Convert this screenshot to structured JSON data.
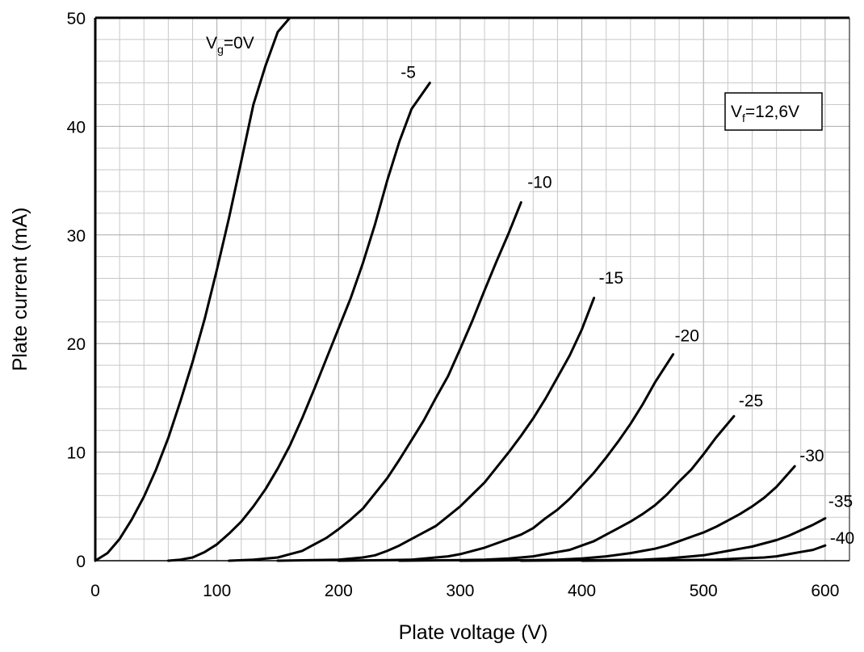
{
  "chart_data": {
    "type": "line",
    "xlabel": "Plate voltage (V)",
    "ylabel": "Plate current (mA)",
    "xlim": [
      0,
      620
    ],
    "ylim": [
      0,
      50
    ],
    "x_ticks": [
      0,
      100,
      200,
      300,
      400,
      500,
      600
    ],
    "y_ticks": [
      0,
      10,
      20,
      30,
      40,
      50
    ],
    "grid": true,
    "annotation": {
      "main": "V",
      "sub": "f",
      "rest": "=12,6V"
    },
    "series": [
      {
        "name": "Vg=0V",
        "label_main": "V",
        "label_sub": "g",
        "label_rest": "=0V",
        "x": [
          0,
          10,
          20,
          30,
          40,
          50,
          60,
          70,
          80,
          90,
          100,
          110,
          120,
          130,
          140,
          150,
          160,
          164
        ],
        "y": [
          0,
          0.7,
          2.0,
          3.8,
          5.9,
          8.4,
          11.3,
          14.7,
          18.3,
          22.3,
          26.8,
          31.6,
          36.8,
          42.0,
          45.6,
          48.7,
          50.0,
          50.0
        ]
      },
      {
        "name": "-5",
        "label_main": "-5",
        "x": [
          60,
          70,
          80,
          90,
          100,
          110,
          120,
          130,
          140,
          150,
          160,
          170,
          180,
          190,
          200,
          210,
          220,
          230,
          240,
          250,
          260,
          275
        ],
        "y": [
          0,
          0.1,
          0.3,
          0.8,
          1.5,
          2.5,
          3.6,
          5.0,
          6.6,
          8.5,
          10.6,
          13.1,
          15.8,
          18.6,
          21.4,
          24.2,
          27.4,
          31.0,
          35.0,
          38.6,
          41.6,
          44.0
        ]
      },
      {
        "name": "-10",
        "label_main": "-10",
        "x": [
          110,
          130,
          150,
          160,
          170,
          180,
          190,
          200,
          210,
          220,
          230,
          240,
          250,
          260,
          270,
          280,
          290,
          300,
          310,
          320,
          330,
          340,
          350
        ],
        "y": [
          0,
          0.1,
          0.3,
          0.6,
          0.9,
          1.5,
          2.1,
          2.9,
          3.8,
          4.8,
          6.2,
          7.6,
          9.3,
          11.1,
          12.9,
          15.0,
          17.0,
          19.5,
          22.1,
          24.9,
          27.6,
          30.2,
          33.0
        ]
      },
      {
        "name": "-15",
        "label_main": "-15",
        "x": [
          150,
          180,
          200,
          220,
          230,
          240,
          250,
          260,
          270,
          280,
          290,
          300,
          310,
          320,
          330,
          340,
          350,
          360,
          370,
          380,
          390,
          400,
          410
        ],
        "y": [
          0,
          0.05,
          0.1,
          0.3,
          0.5,
          0.9,
          1.4,
          2.0,
          2.6,
          3.2,
          4.1,
          5.0,
          6.1,
          7.2,
          8.6,
          10.0,
          11.5,
          13.1,
          14.9,
          16.9,
          18.9,
          21.3,
          24.2
        ]
      },
      {
        "name": "-20",
        "label_main": "-20",
        "x": [
          200,
          240,
          260,
          280,
          290,
          300,
          310,
          320,
          330,
          340,
          350,
          360,
          370,
          380,
          390,
          400,
          410,
          420,
          430,
          440,
          450,
          460,
          475
        ],
        "y": [
          0,
          0.05,
          0.1,
          0.3,
          0.4,
          0.6,
          0.9,
          1.2,
          1.6,
          2.0,
          2.4,
          3.0,
          3.9,
          4.7,
          5.7,
          6.9,
          8.1,
          9.5,
          11.0,
          12.6,
          14.4,
          16.4,
          19.0
        ]
      },
      {
        "name": "-25",
        "label_main": "-25",
        "x": [
          250,
          300,
          320,
          340,
          360,
          370,
          380,
          390,
          400,
          410,
          420,
          430,
          440,
          450,
          460,
          470,
          480,
          490,
          500,
          510,
          525
        ],
        "y": [
          0,
          0.05,
          0.1,
          0.2,
          0.4,
          0.6,
          0.8,
          1.0,
          1.4,
          1.8,
          2.4,
          3.0,
          3.6,
          4.3,
          5.1,
          6.1,
          7.3,
          8.4,
          9.8,
          11.3,
          13.3
        ]
      },
      {
        "name": "-30",
        "label_main": "-30",
        "x": [
          300,
          360,
          380,
          400,
          420,
          440,
          450,
          460,
          470,
          480,
          490,
          500,
          510,
          520,
          530,
          540,
          550,
          560,
          575
        ],
        "y": [
          0,
          0.05,
          0.1,
          0.2,
          0.4,
          0.7,
          0.9,
          1.1,
          1.4,
          1.8,
          2.2,
          2.6,
          3.1,
          3.7,
          4.3,
          5.0,
          5.8,
          6.8,
          8.7
        ]
      },
      {
        "name": "-35",
        "label_main": "-35",
        "x": [
          350,
          420,
          450,
          470,
          490,
          500,
          510,
          520,
          530,
          540,
          550,
          560,
          570,
          580,
          590,
          600
        ],
        "y": [
          0,
          0.05,
          0.1,
          0.2,
          0.4,
          0.5,
          0.7,
          0.9,
          1.1,
          1.3,
          1.6,
          1.9,
          2.3,
          2.8,
          3.3,
          3.9
        ]
      },
      {
        "name": "-40",
        "label_main": "-40",
        "x": [
          400,
          480,
          510,
          530,
          550,
          560,
          570,
          580,
          590,
          600
        ],
        "y": [
          0,
          0.05,
          0.1,
          0.2,
          0.3,
          0.4,
          0.6,
          0.8,
          1.0,
          1.4
        ]
      }
    ]
  }
}
